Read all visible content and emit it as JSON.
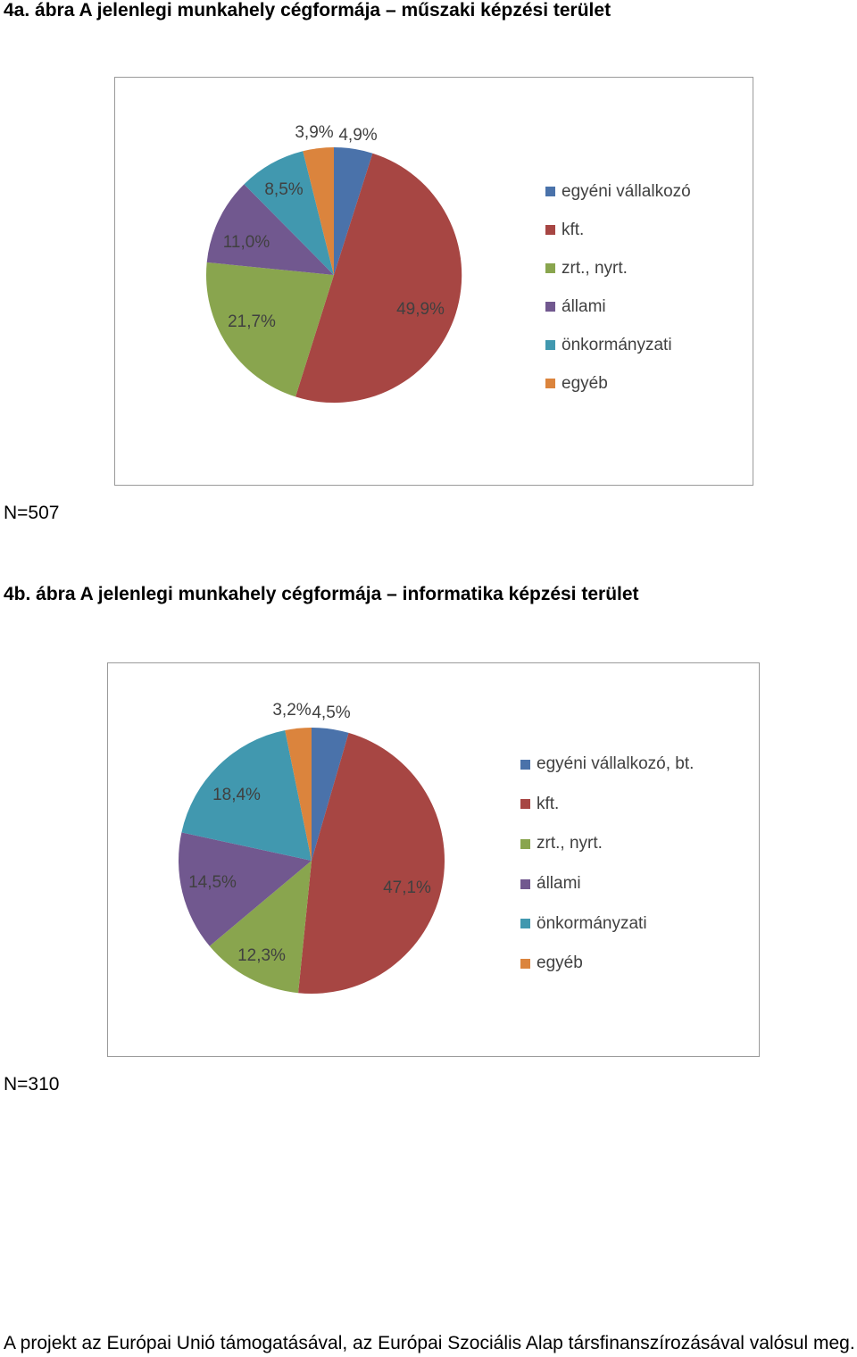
{
  "colors": {
    "egyeni": "#4a72aa",
    "kft": "#a74643",
    "zrt": "#89a54e",
    "allami": "#71588f",
    "onkormanyzati": "#4198af",
    "egyeb": "#db843d"
  },
  "chart_data": [
    {
      "type": "pie",
      "title": "4a. ábra A jelenlegi munkahely cégformája – műszaki képzési terület",
      "legend_position": "right",
      "slices": [
        {
          "label": "egyéni vállalkozó",
          "value": 4.9,
          "value_label": "4,9%",
          "color": "#4a72aa"
        },
        {
          "label": "kft.",
          "value": 49.9,
          "value_label": "49,9%",
          "color": "#a74643"
        },
        {
          "label": "zrt., nyrt.",
          "value": 21.7,
          "value_label": "21,7%",
          "color": "#89a54e"
        },
        {
          "label": "állami",
          "value": 11.0,
          "value_label": "11,0%",
          "color": "#71588f"
        },
        {
          "label": "önkormányzati",
          "value": 8.5,
          "value_label": "8,5%",
          "color": "#4198af"
        },
        {
          "label": "egyéb",
          "value": 3.9,
          "value_label": "3,9%",
          "color": "#db843d"
        }
      ],
      "note": "N=507"
    },
    {
      "type": "pie",
      "title": "4b. ábra A jelenlegi munkahely cégformája – informatika képzési terület",
      "legend_position": "right",
      "slices": [
        {
          "label": "egyéni vállalkozó, bt.",
          "value": 4.5,
          "value_label": "4,5%",
          "color": "#4a72aa"
        },
        {
          "label": "kft.",
          "value": 47.1,
          "value_label": "47,1%",
          "color": "#a74643"
        },
        {
          "label": "zrt., nyrt.",
          "value": 12.3,
          "value_label": "12,3%",
          "color": "#89a54e"
        },
        {
          "label": "állami",
          "value": 14.5,
          "value_label": "14,5%",
          "color": "#71588f"
        },
        {
          "label": "önkormányzati",
          "value": 18.4,
          "value_label": "18,4%",
          "color": "#4198af"
        },
        {
          "label": "egyéb",
          "value": 3.2,
          "value_label": "3,2%",
          "color": "#db843d"
        }
      ],
      "note": "N=310"
    }
  ],
  "footer": "A projekt az Európai Unió támogatásával, az Európai Szociális Alap társfinanszírozásával valósul meg."
}
